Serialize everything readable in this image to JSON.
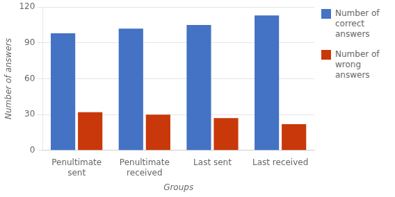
{
  "chart_data": {
    "type": "bar",
    "categories": [
      "Penultimate\nsent",
      "Penultimate\nreceived",
      "Last sent",
      "Last received"
    ],
    "series": [
      {
        "name": "Number of\ncorrect\nanswers",
        "color": "#4472C4",
        "values": [
          98,
          102,
          105,
          113
        ]
      },
      {
        "name": "Number of\nwrong\nanswers",
        "color": "#C9380A",
        "values": [
          32,
          30,
          27,
          22
        ]
      }
    ],
    "xlabel": "Groups",
    "ylabel": "Number of answers",
    "ylim": [
      0,
      120
    ],
    "yticks": [
      0,
      30,
      60,
      90,
      120
    ],
    "grid": true,
    "legend": "right"
  }
}
